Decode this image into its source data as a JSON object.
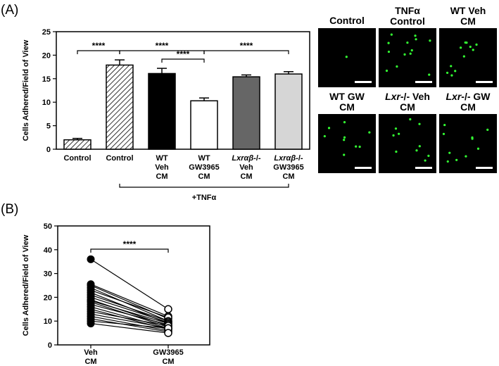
{
  "panels": {
    "a_label": "(A)",
    "b_label": "(B)"
  },
  "chart_data": [
    {
      "type": "bar",
      "panel": "(A)",
      "ylabel": "Cells Adhered/Field of View",
      "ylim": [
        0,
        25
      ],
      "yticks": [
        "0",
        "5",
        "10",
        "15",
        "20",
        "25"
      ],
      "categories": [
        [
          "Control"
        ],
        [
          "Control"
        ],
        [
          "WT",
          "Veh",
          "CM"
        ],
        [
          "WT",
          "GW3965",
          "CM"
        ],
        [
          "Lxrαβ-/-",
          "Veh",
          "CM"
        ],
        [
          "Lxrαβ-/-",
          "GW3965",
          "CM"
        ]
      ],
      "values": [
        2.0,
        17.9,
        16.1,
        10.3,
        15.4,
        16.0
      ],
      "errors": [
        0.3,
        1.1,
        1.1,
        0.6,
        0.4,
        0.5
      ],
      "fills": [
        "hatch",
        "hatch",
        "#000000",
        "#ffffff",
        "#666666",
        "#d6d6d6"
      ],
      "group_label": "+TNFα",
      "group_range": [
        1,
        5
      ],
      "significance": [
        {
          "from": 0,
          "to": 1,
          "label": "****"
        },
        {
          "from": 1,
          "to": 3,
          "label": "****"
        },
        {
          "from": 2,
          "to": 3,
          "label": "****"
        },
        {
          "from": 3,
          "to": 5,
          "label": "****"
        }
      ]
    },
    {
      "type": "scatter",
      "panel": "(B)",
      "ylabel": "Cells Adhered/Field of View",
      "ylim": [
        0,
        50
      ],
      "yticks": [
        "0",
        "10",
        "20",
        "30",
        "40",
        "50"
      ],
      "categories": [
        [
          "Veh",
          "CM"
        ],
        [
          "GW3965",
          "CM"
        ]
      ],
      "pairs": [
        [
          36,
          15
        ],
        [
          25.5,
          12
        ],
        [
          25,
          11
        ],
        [
          24,
          10
        ],
        [
          23,
          11.5
        ],
        [
          22,
          9
        ],
        [
          21,
          10
        ],
        [
          20,
          9.5
        ],
        [
          19,
          8
        ],
        [
          18.5,
          9
        ],
        [
          18,
          7.5
        ],
        [
          17,
          8.5
        ],
        [
          16,
          7
        ],
        [
          15,
          6.5
        ],
        [
          14,
          8
        ],
        [
          13,
          7
        ],
        [
          12,
          6
        ],
        [
          11,
          5.5
        ],
        [
          10,
          7
        ],
        [
          9,
          5
        ]
      ],
      "significance": [
        {
          "from": 0,
          "to": 1,
          "label": "****"
        }
      ]
    }
  ],
  "images": [
    {
      "title": [
        "Control"
      ],
      "dots": 1
    },
    {
      "title": [
        "TNFα",
        "Control"
      ],
      "dots": 13
    },
    {
      "title": [
        "WT Veh",
        "CM"
      ],
      "dots": 11
    },
    {
      "title": [
        "WT GW",
        "CM"
      ],
      "dots": 9
    },
    {
      "title": [
        "Lxr-/- Veh",
        "CM"
      ],
      "dots": 10
    },
    {
      "title": [
        "Lxr-/- GW",
        "CM"
      ],
      "dots": 10
    }
  ]
}
